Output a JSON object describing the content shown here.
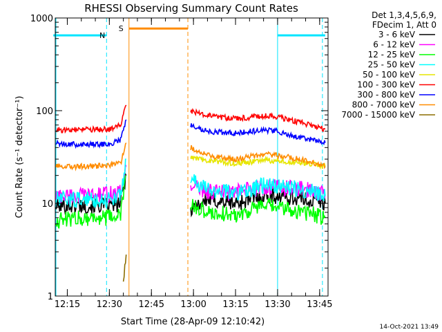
{
  "chart_data": {
    "type": "line",
    "title": "RHESSI Observing Summary Count Rates",
    "xlabel": "Start Time (28-Apr-09 12:10:42)",
    "ylabel": "Count Rate (s⁻¹ detector⁻¹)",
    "y_scale": "log",
    "ylim": [
      1,
      1000
    ],
    "xlim": [
      "12:10",
      "13:48"
    ],
    "x_ticks": [
      "12:15",
      "12:30",
      "12:45",
      "13:00",
      "13:15",
      "13:30",
      "13:45"
    ],
    "y_ticks": [
      "1",
      "10",
      "100",
      "1000"
    ],
    "legend_header": [
      "Det 1,3,4,5,6,9,",
      "FDecim 1, Att 0"
    ],
    "legend_placement": "right",
    "timestamp": "14-Oct-2021 13:49",
    "data_gap": [
      "12:36",
      "12:59"
    ],
    "series": [
      {
        "name": "3 - 6 keV",
        "color": "#000000",
        "x": [
          "12:11",
          "12:20",
          "12:30",
          "12:34",
          "12:36",
          "12:59",
          "13:05",
          "13:15",
          "13:25",
          "13:30",
          "13:40",
          "13:47"
        ],
        "y": [
          9.5,
          9.5,
          9.5,
          10,
          20,
          9,
          11,
          10,
          12,
          12,
          11,
          10
        ]
      },
      {
        "name": "6 - 12 keV",
        "color": "#ff00ff",
        "x": [
          "12:11",
          "12:20",
          "12:30",
          "12:34",
          "12:36",
          "12:59",
          "13:05",
          "13:15",
          "13:25",
          "13:30",
          "13:40",
          "13:47"
        ],
        "y": [
          12,
          12,
          12.5,
          13,
          25,
          16,
          13.5,
          13,
          15,
          15,
          14,
          12.5
        ]
      },
      {
        "name": "12 - 25 keV",
        "color": "#00ff00",
        "x": [
          "12:11",
          "12:20",
          "12:30",
          "12:34",
          "12:36",
          "12:59",
          "13:05",
          "13:15",
          "13:25",
          "13:30",
          "13:40",
          "13:47"
        ],
        "y": [
          6.5,
          7,
          7,
          7.5,
          20,
          9.5,
          8,
          7.5,
          9.5,
          9,
          8,
          7
        ]
      },
      {
        "name": "25 - 50 keV",
        "color": "#00ffff",
        "x": [
          "12:11",
          "12:20",
          "12:30",
          "12:34",
          "12:36",
          "12:59",
          "13:05",
          "13:15",
          "13:25",
          "13:30",
          "13:40",
          "13:47"
        ],
        "y": [
          11,
          11,
          11,
          12,
          30,
          18,
          14,
          13,
          15.5,
          15.5,
          14,
          12
        ]
      },
      {
        "name": "50 - 100 keV",
        "color": "#e6e600",
        "x": [
          "12:59",
          "13:05",
          "13:15",
          "13:25",
          "13:30",
          "13:40",
          "13:47"
        ],
        "y": [
          31,
          29,
          27,
          29,
          29,
          27,
          25
        ]
      },
      {
        "name": "100 - 300 keV",
        "color": "#ff0000",
        "x": [
          "12:11",
          "12:20",
          "12:30",
          "12:34",
          "12:36",
          "12:59",
          "13:05",
          "13:15",
          "13:25",
          "13:30",
          "13:40",
          "13:47"
        ],
        "y": [
          62,
          62,
          63,
          70,
          115,
          100,
          88,
          82,
          88,
          86,
          72,
          63
        ]
      },
      {
        "name": "300 - 800 keV",
        "color": "#0000ff",
        "x": [
          "12:11",
          "12:20",
          "12:30",
          "12:34",
          "12:36",
          "12:59",
          "13:05",
          "13:15",
          "13:25",
          "13:30",
          "13:40",
          "13:47"
        ],
        "y": [
          44,
          43,
          44,
          48,
          80,
          70,
          60,
          57,
          62,
          60,
          50,
          45
        ]
      },
      {
        "name": "800 - 7000 keV",
        "color": "#ff8c00",
        "x": [
          "12:11",
          "12:20",
          "12:30",
          "12:34",
          "12:36",
          "12:59",
          "13:05",
          "13:15",
          "13:25",
          "13:30",
          "13:40",
          "13:47"
        ],
        "y": [
          25,
          25,
          25.5,
          27,
          45,
          40,
          33,
          30,
          34,
          33,
          29,
          25
        ]
      },
      {
        "name": "7000 - 15000 keV",
        "color": "#8b6d00",
        "x": [
          "12:35",
          "12:36"
        ],
        "y": [
          1.5,
          2.8
        ]
      }
    ],
    "annotations": [
      {
        "label": "N",
        "color": "#00e5ff",
        "segment": [
          "12:10",
          "12:29"
        ],
        "level": 650,
        "marker_line_dashed": "12:29"
      },
      {
        "label": "S",
        "color": "#ff8c00",
        "segment": [
          "12:37",
          "12:58"
        ],
        "level": 770,
        "marker_line_solid": "12:37",
        "marker_line_dashed": "12:58"
      },
      {
        "label": "",
        "color": "#00e5ff",
        "segment": [
          "13:30",
          "13:47"
        ],
        "level": 650,
        "marker_line_solid": "13:30",
        "marker_line_dashed": "13:46"
      }
    ]
  }
}
